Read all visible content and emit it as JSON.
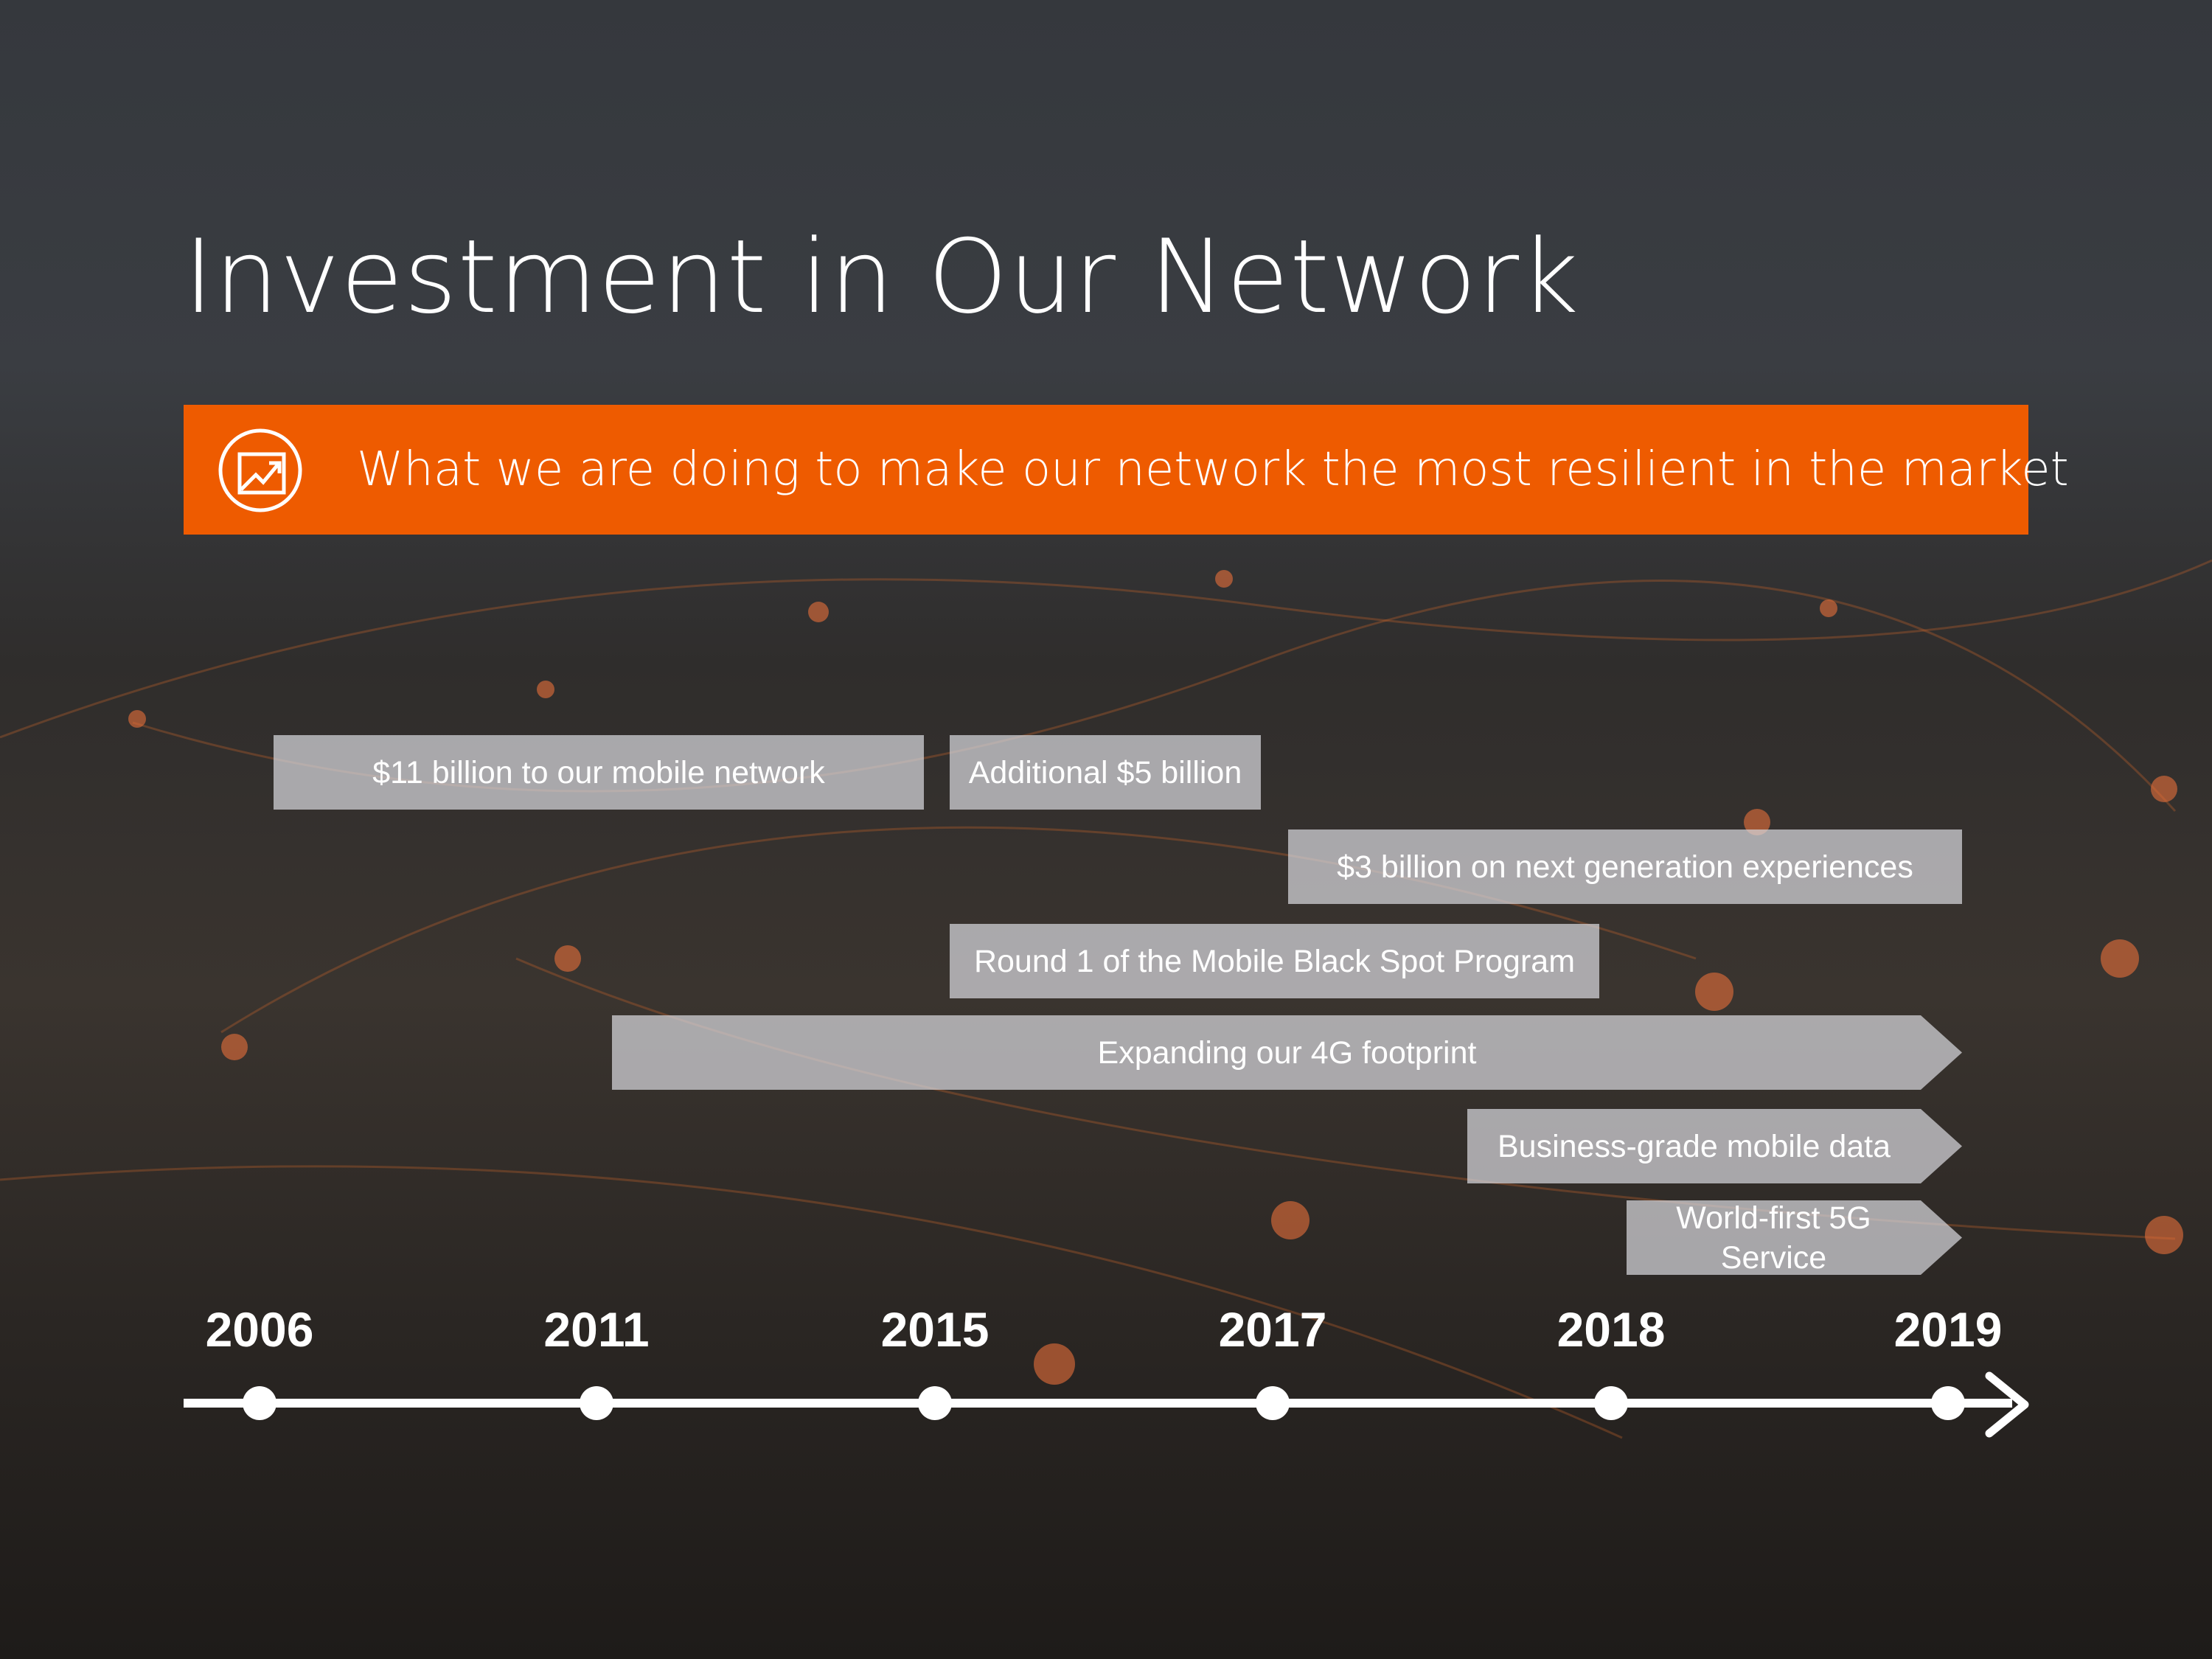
{
  "slide": {
    "title": "Investment in Our Network",
    "banner": {
      "text": "What we are doing to make our network the most resilient in the market",
      "icon": "trending-chart-icon",
      "color": "#ee5b00"
    },
    "bars": [
      {
        "label": "$11 billion to our mobile network",
        "from": "2006",
        "to": "2015"
      },
      {
        "label": "Additional $5 billion",
        "from": "2015",
        "to": "2017"
      },
      {
        "label": "$3 billion on next generation experiences",
        "from": "2017",
        "to": "2019"
      },
      {
        "label": "Round 1 of the Mobile Black Spot Program",
        "from": "2015",
        "to": "2018"
      },
      {
        "label": "Expanding our 4G footprint",
        "from": "2011",
        "to": "2019",
        "arrow": true
      },
      {
        "label": "Business-grade mobile data",
        "from": "2018",
        "to": "2019",
        "arrow": true
      },
      {
        "label": "World-first 5G Service",
        "from": "2018",
        "to": "2019",
        "arrow": true
      }
    ],
    "years": [
      "2006",
      "2011",
      "2015",
      "2017",
      "2018",
      "2019"
    ]
  }
}
